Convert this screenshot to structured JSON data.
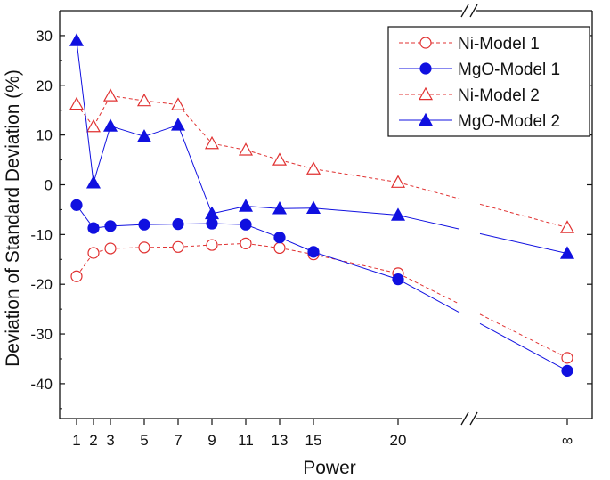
{
  "chart_data": {
    "type": "line",
    "title": "",
    "xlabel": "Power",
    "ylabel": "Deviation of Standard Deviation (%)",
    "ylim": [
      -47,
      35
    ],
    "y_ticks": [
      "30",
      "20",
      "10",
      "0",
      "-10",
      "-20",
      "-30",
      "-40"
    ],
    "y_tick_values": [
      30,
      20,
      10,
      0,
      -10,
      -20,
      -30,
      -40
    ],
    "x_tick_labels": [
      "1",
      "2",
      "3",
      "5",
      "7",
      "9",
      "11",
      "13",
      "15",
      "20",
      "∞"
    ],
    "x_tick_values": [
      1,
      2,
      3,
      5,
      7,
      9,
      11,
      13,
      15,
      20,
      "inf"
    ],
    "axis_break": "between 20 and ∞",
    "legend_position": "top-right",
    "colors": {
      "ni": "#e03030",
      "mgo": "#1010e0"
    },
    "series": [
      {
        "name": "Ni-Model 1",
        "color": "#e03030",
        "line": "dashed",
        "marker": "circle-open",
        "values": [
          -18.4,
          -13.7,
          -12.8,
          -12.6,
          -12.5,
          -12.1,
          -11.8,
          -12.7,
          -14.0,
          -17.8,
          -34.8
        ]
      },
      {
        "name": "MgO-Model 1",
        "color": "#1010e0",
        "line": "solid",
        "marker": "circle-filled",
        "values": [
          -4.1,
          -8.7,
          -8.3,
          -8.0,
          -7.9,
          -7.8,
          -8.0,
          -10.6,
          -13.5,
          -19.0,
          -37.4
        ]
      },
      {
        "name": "Ni-Model 2",
        "color": "#e03030",
        "line": "dashed",
        "marker": "triangle-open",
        "values": [
          16.2,
          11.7,
          17.9,
          16.9,
          16.1,
          8.3,
          7.0,
          5.0,
          3.2,
          0.5,
          -8.6
        ]
      },
      {
        "name": "MgO-Model 2",
        "color": "#1010e0",
        "line": "solid",
        "marker": "triangle-filled",
        "values": [
          29.0,
          0.4,
          11.8,
          9.7,
          12.0,
          -5.8,
          -4.3,
          -4.8,
          -4.7,
          -6.1,
          -13.8
        ]
      }
    ]
  }
}
